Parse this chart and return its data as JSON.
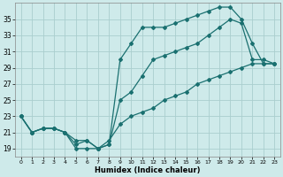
{
  "xlabel": "Humidex (Indice chaleur)",
  "bg_color": "#ceeaea",
  "grid_color": "#aacece",
  "line_color": "#1a7070",
  "xlim": [
    -0.5,
    23.5
  ],
  "ylim": [
    18,
    37
  ],
  "xticks": [
    0,
    1,
    2,
    3,
    4,
    5,
    6,
    7,
    8,
    9,
    10,
    11,
    12,
    13,
    14,
    15,
    16,
    17,
    18,
    19,
    20,
    21,
    22,
    23
  ],
  "yticks": [
    19,
    21,
    23,
    25,
    27,
    29,
    31,
    33,
    35
  ],
  "line1_x": [
    0,
    1,
    2,
    3,
    4,
    5,
    6,
    7,
    8,
    9,
    10,
    11,
    12,
    13,
    14,
    15,
    16,
    17,
    18,
    19,
    20,
    21,
    22,
    23
  ],
  "line1_y": [
    23,
    21,
    21.5,
    21.5,
    21,
    20,
    20,
    19,
    19.5,
    30,
    32,
    34,
    34,
    34,
    34.5,
    35,
    35.5,
    36,
    36.5,
    36.5,
    35,
    32,
    29.5,
    29.5
  ],
  "line2_x": [
    0,
    1,
    2,
    3,
    4,
    5,
    6,
    7,
    8,
    9,
    10,
    11,
    12,
    13,
    14,
    15,
    16,
    17,
    18,
    19,
    20,
    21,
    22,
    23
  ],
  "line2_y": [
    23,
    21,
    21.5,
    21.5,
    21,
    19.5,
    20,
    19,
    19.5,
    25,
    26,
    28,
    30,
    30.5,
    31,
    31.5,
    32,
    33,
    34,
    35,
    34.5,
    30,
    30,
    29.5
  ],
  "line3_x": [
    0,
    1,
    2,
    3,
    4,
    5,
    6,
    7,
    8,
    9,
    10,
    11,
    12,
    13,
    14,
    15,
    16,
    17,
    18,
    19,
    20,
    21,
    22,
    23
  ],
  "line3_y": [
    23,
    21,
    21.5,
    21.5,
    21,
    19,
    19,
    19,
    20,
    22,
    23,
    23.5,
    24,
    25,
    25.5,
    26,
    27,
    27.5,
    28,
    28.5,
    29,
    29.5,
    29.5,
    29.5
  ]
}
